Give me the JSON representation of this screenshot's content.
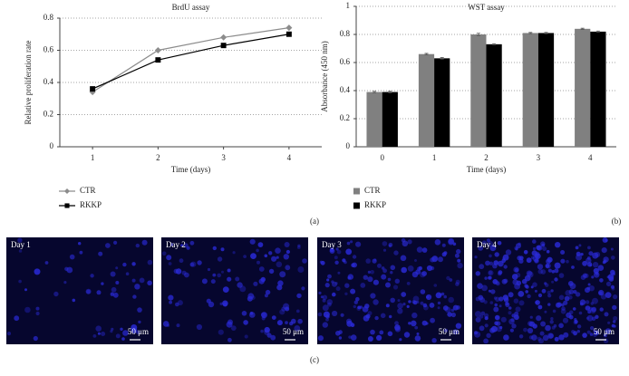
{
  "chart_data": [
    {
      "type": "line",
      "title": "BrdU assay",
      "xlabel": "Time (days)",
      "ylabel": "Relative proliferation rate",
      "x": [
        1,
        2,
        3,
        4
      ],
      "xlim": [
        0.5,
        4.5
      ],
      "xticks": [
        1,
        2,
        3,
        4
      ],
      "ylim": [
        0,
        0.8
      ],
      "yticks": [
        0,
        0.2,
        0.4,
        0.6,
        0.8
      ],
      "grid": true,
      "legend": "bottom-left",
      "series": [
        {
          "name": "CTR",
          "color": "#8c8c8c",
          "marker": "diamond",
          "values": [
            0.34,
            0.6,
            0.68,
            0.74
          ]
        },
        {
          "name": "RKKP",
          "color": "#000000",
          "marker": "square",
          "values": [
            0.36,
            0.54,
            0.63,
            0.7
          ]
        }
      ]
    },
    {
      "type": "bar",
      "title": "WST assay",
      "xlabel": "Time (days)",
      "ylabel": "Absorbance (450 nm)",
      "categories": [
        "0",
        "1",
        "2",
        "3",
        "4"
      ],
      "ylim": [
        0,
        1
      ],
      "yticks": [
        0,
        0.2,
        0.4,
        0.6,
        0.8,
        1
      ],
      "grid": true,
      "legend": "bottom-left",
      "series": [
        {
          "name": "CTR",
          "color": "#808080",
          "values": [
            0.39,
            0.66,
            0.8,
            0.81,
            0.84
          ],
          "errors": [
            0.005,
            0.005,
            0.008,
            0.004,
            0.004
          ]
        },
        {
          "name": "RKKP",
          "color": "#000000",
          "values": [
            0.39,
            0.63,
            0.73,
            0.81,
            0.82
          ],
          "errors": [
            0.005,
            0.005,
            0.004,
            0.004,
            0.004
          ]
        }
      ]
    }
  ],
  "panel_labels": [
    "(a)",
    "(b)",
    "(c)"
  ],
  "images": [
    {
      "label": "Day 1",
      "scale": "50 μm"
    },
    {
      "label": "Day 2",
      "scale": "50 μm"
    },
    {
      "label": "Day 3",
      "scale": "50 μm"
    },
    {
      "label": "Day 4",
      "scale": "50 μm"
    }
  ]
}
